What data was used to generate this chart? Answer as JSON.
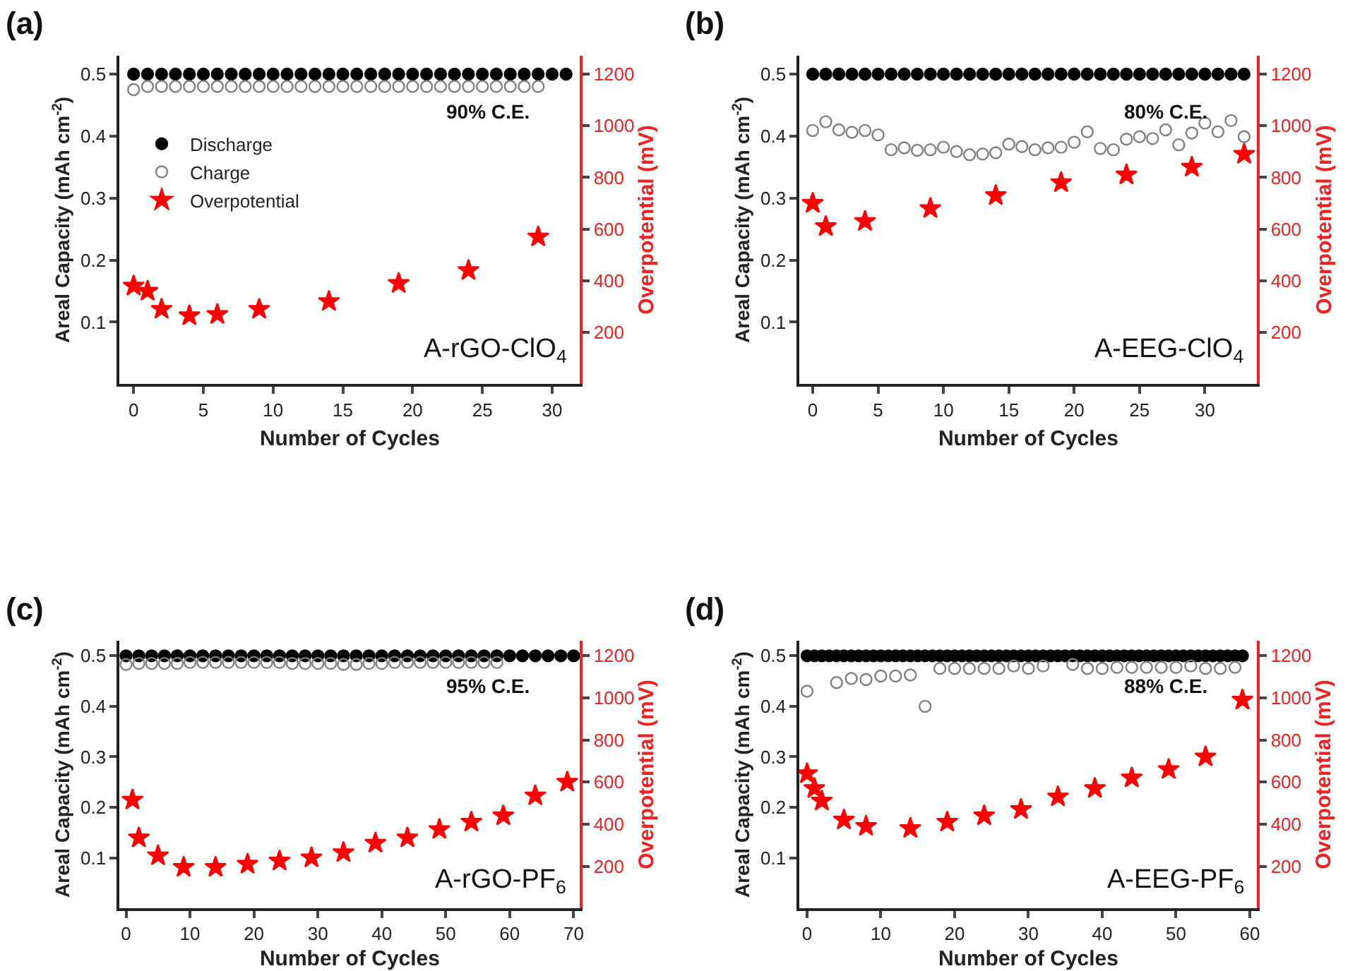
{
  "chart_data": [
    {
      "type": "scatter",
      "title": "(a)",
      "xlabel": "Number of Cycles",
      "ylabel": "Areal Capacity (mAh cm$^{-2}$)",
      "y2label": "Overpotential (mV)",
      "xlim": [
        -1,
        32
      ],
      "xticks": [
        0,
        5,
        10,
        15,
        20,
        25,
        30
      ],
      "ylim": [
        0,
        0.53
      ],
      "yticks": [
        0.1,
        0.2,
        0.3,
        0.4,
        0.5
      ],
      "y2lim": [
        0,
        1272
      ],
      "y2ticks": [
        200,
        400,
        600,
        800,
        1000,
        1200
      ],
      "legend": "left",
      "annotations": [
        "90% C.E.",
        "A-rGO-ClO$_{4}$"
      ],
      "series": [
        {
          "name": "Discharge",
          "color": "#000000",
          "marker": "circle",
          "x": [
            0,
            1,
            2,
            3,
            4,
            5,
            6,
            7,
            8,
            9,
            10,
            11,
            12,
            13,
            14,
            15,
            16,
            17,
            18,
            19,
            20,
            21,
            22,
            23,
            24,
            25,
            26,
            27,
            28,
            29,
            30,
            31
          ],
          "values": [
            0.5,
            0.5,
            0.5,
            0.5,
            0.5,
            0.5,
            0.5,
            0.5,
            0.5,
            0.5,
            0.5,
            0.5,
            0.5,
            0.5,
            0.5,
            0.5,
            0.5,
            0.5,
            0.5,
            0.5,
            0.5,
            0.5,
            0.5,
            0.5,
            0.5,
            0.5,
            0.5,
            0.5,
            0.5,
            0.5,
            0.5,
            0.5
          ]
        },
        {
          "name": "Charge",
          "color": "#808080",
          "marker": "circle-open",
          "x": [
            0,
            1,
            2,
            3,
            4,
            5,
            6,
            7,
            8,
            9,
            10,
            11,
            12,
            13,
            14,
            15,
            16,
            17,
            18,
            19,
            20,
            21,
            22,
            23,
            24,
            25,
            26,
            27,
            28,
            29
          ],
          "values": [
            0.475,
            0.48,
            0.48,
            0.48,
            0.48,
            0.48,
            0.48,
            0.48,
            0.48,
            0.48,
            0.48,
            0.48,
            0.48,
            0.48,
            0.48,
            0.48,
            0.48,
            0.48,
            0.48,
            0.48,
            0.48,
            0.48,
            0.48,
            0.48,
            0.48,
            0.48,
            0.48,
            0.48,
            0.48,
            0.48
          ]
        },
        {
          "name": "Overpotential",
          "color": "#ff0000",
          "marker": "star",
          "axis": "y2",
          "x": [
            0,
            1,
            2,
            4,
            6,
            9,
            14,
            19,
            24,
            29
          ],
          "values": [
            380,
            360,
            290,
            265,
            270,
            290,
            320,
            390,
            440,
            570
          ]
        }
      ]
    },
    {
      "type": "scatter",
      "title": "(b)",
      "xlabel": "Number of Cycles",
      "ylabel": "Areal Capacity (mAh cm$^{-2}$)",
      "y2label": "Overpotential (mV)",
      "xlim": [
        -1,
        34
      ],
      "xticks": [
        0,
        5,
        10,
        15,
        20,
        25,
        30
      ],
      "ylim": [
        0,
        0.53
      ],
      "yticks": [
        0.1,
        0.2,
        0.3,
        0.4,
        0.5
      ],
      "y2lim": [
        0,
        1272
      ],
      "y2ticks": [
        200,
        400,
        600,
        800,
        1000,
        1200
      ],
      "annotations": [
        "80% C.E.",
        "A-EEG-ClO$_{4}$"
      ],
      "series": [
        {
          "color": "#000000",
          "marker": "circle",
          "x": [
            0,
            1,
            2,
            3,
            4,
            5,
            6,
            7,
            8,
            9,
            10,
            11,
            12,
            13,
            14,
            15,
            16,
            17,
            18,
            19,
            20,
            21,
            22,
            23,
            24,
            25,
            26,
            27,
            28,
            29,
            30,
            31,
            32,
            33
          ],
          "values": [
            0.5,
            0.5,
            0.5,
            0.5,
            0.5,
            0.5,
            0.5,
            0.5,
            0.5,
            0.5,
            0.5,
            0.5,
            0.5,
            0.5,
            0.5,
            0.5,
            0.5,
            0.5,
            0.5,
            0.5,
            0.5,
            0.5,
            0.5,
            0.5,
            0.5,
            0.5,
            0.5,
            0.5,
            0.5,
            0.5,
            0.5,
            0.5,
            0.5,
            0.5
          ]
        },
        {
          "color": "#808080",
          "marker": "circle-open",
          "x": [
            0,
            1,
            2,
            3,
            4,
            5,
            6,
            7,
            8,
            9,
            10,
            11,
            12,
            13,
            14,
            15,
            16,
            17,
            18,
            19,
            20,
            21,
            22,
            23,
            24,
            25,
            26,
            27,
            28,
            29,
            30,
            31,
            32,
            33
          ],
          "values": [
            0.409,
            0.423,
            0.41,
            0.406,
            0.409,
            0.402,
            0.378,
            0.381,
            0.377,
            0.378,
            0.382,
            0.375,
            0.37,
            0.371,
            0.373,
            0.387,
            0.383,
            0.378,
            0.381,
            0.382,
            0.39,
            0.407,
            0.38,
            0.378,
            0.395,
            0.399,
            0.396,
            0.41,
            0.386,
            0.405,
            0.421,
            0.407,
            0.425,
            0.399
          ]
        },
        {
          "color": "#ff0000",
          "marker": "star",
          "axis": "y2",
          "x": [
            0,
            1,
            4,
            9,
            14,
            19,
            24,
            29,
            33
          ],
          "values": [
            700,
            610,
            630,
            680,
            730,
            780,
            810,
            840,
            890
          ]
        }
      ]
    },
    {
      "type": "scatter",
      "title": "(c)",
      "xlabel": "Number of Cycles",
      "ylabel": "Areal Capacity (mAh cm$^{-2}$)",
      "y2label": "Overpotential (mV)",
      "xlim": [
        -1,
        71
      ],
      "xticks": [
        0,
        10,
        20,
        30,
        40,
        50,
        60,
        70
      ],
      "ylim": [
        0,
        0.53
      ],
      "yticks": [
        0.1,
        0.2,
        0.3,
        0.4,
        0.5
      ],
      "y2lim": [
        0,
        1272
      ],
      "y2ticks": [
        200,
        400,
        600,
        800,
        1000,
        1200
      ],
      "annotations": [
        "95% C.E.",
        "A-rGO-PF$_{6}$"
      ],
      "series": [
        {
          "color": "#000000",
          "marker": "circle",
          "x": [
            0,
            2,
            4,
            6,
            8,
            10,
            12,
            14,
            16,
            18,
            20,
            22,
            24,
            26,
            28,
            30,
            32,
            34,
            36,
            38,
            40,
            42,
            44,
            46,
            48,
            50,
            52,
            54,
            56,
            58,
            60,
            62,
            64,
            66,
            68,
            70
          ],
          "values": [
            0.5,
            0.5,
            0.5,
            0.5,
            0.5,
            0.5,
            0.5,
            0.5,
            0.5,
            0.5,
            0.5,
            0.5,
            0.5,
            0.5,
            0.5,
            0.5,
            0.5,
            0.5,
            0.5,
            0.5,
            0.5,
            0.5,
            0.5,
            0.5,
            0.5,
            0.5,
            0.5,
            0.5,
            0.5,
            0.5,
            0.5,
            0.5,
            0.5,
            0.5,
            0.5,
            0.5
          ]
        },
        {
          "color": "#808080",
          "marker": "circle-open",
          "x": [
            0,
            2,
            4,
            6,
            8,
            10,
            12,
            14,
            16,
            18,
            20,
            22,
            24,
            26,
            28,
            30,
            32,
            34,
            36,
            38,
            40,
            42,
            44,
            46,
            48,
            50,
            52,
            54,
            56,
            58
          ],
          "values": [
            0.483,
            0.485,
            0.485,
            0.485,
            0.485,
            0.487,
            0.487,
            0.487,
            0.487,
            0.487,
            0.487,
            0.487,
            0.487,
            0.485,
            0.485,
            0.485,
            0.485,
            0.483,
            0.483,
            0.485,
            0.485,
            0.487,
            0.487,
            0.487,
            0.487,
            0.487,
            0.487,
            0.487,
            0.487,
            0.487
          ]
        },
        {
          "color": "#ff0000",
          "marker": "star",
          "axis": "y2",
          "x": [
            1,
            2,
            5,
            9,
            14,
            19,
            24,
            29,
            34,
            39,
            44,
            49,
            54,
            59,
            64,
            69
          ],
          "values": [
            515,
            335,
            250,
            195,
            195,
            210,
            225,
            240,
            265,
            310,
            335,
            375,
            410,
            440,
            535,
            600
          ]
        }
      ]
    },
    {
      "type": "scatter",
      "title": "(d)",
      "xlabel": "Number of Cycles",
      "ylabel": "Areal Capacity (mAh cm$^{-2}$)",
      "y2label": "Overpotential (mV)",
      "xlim": [
        -1,
        61
      ],
      "xticks": [
        0,
        10,
        20,
        30,
        40,
        50,
        60
      ],
      "ylim": [
        0,
        0.53
      ],
      "yticks": [
        0.1,
        0.2,
        0.3,
        0.4,
        0.5
      ],
      "y2lim": [
        0,
        1272
      ],
      "y2ticks": [
        200,
        400,
        600,
        800,
        1000,
        1200
      ],
      "annotations": [
        "88% C.E.",
        "A-EEG-PF$_{6}$"
      ],
      "series": [
        {
          "color": "#000000",
          "marker": "circle",
          "x": [
            0,
            1,
            2,
            3,
            4,
            5,
            6,
            7,
            8,
            9,
            10,
            11,
            12,
            13,
            14,
            15,
            16,
            17,
            18,
            19,
            20,
            21,
            22,
            23,
            24,
            25,
            26,
            27,
            28,
            29,
            30,
            31,
            32,
            33,
            34,
            35,
            36,
            37,
            38,
            39,
            40,
            41,
            42,
            43,
            44,
            45,
            46,
            47,
            48,
            49,
            50,
            51,
            52,
            53,
            54,
            55,
            56,
            57,
            58,
            59
          ],
          "values": [
            0.5,
            0.5,
            0.5,
            0.5,
            0.5,
            0.5,
            0.5,
            0.5,
            0.5,
            0.5,
            0.5,
            0.5,
            0.5,
            0.5,
            0.5,
            0.5,
            0.5,
            0.5,
            0.5,
            0.5,
            0.5,
            0.5,
            0.5,
            0.5,
            0.5,
            0.5,
            0.5,
            0.5,
            0.5,
            0.5,
            0.5,
            0.5,
            0.5,
            0.5,
            0.5,
            0.5,
            0.5,
            0.5,
            0.5,
            0.5,
            0.5,
            0.5,
            0.5,
            0.5,
            0.5,
            0.5,
            0.5,
            0.5,
            0.5,
            0.5,
            0.5,
            0.5,
            0.5,
            0.5,
            0.5,
            0.5,
            0.5,
            0.5,
            0.5,
            0.5
          ]
        },
        {
          "color": "#808080",
          "marker": "circle-open",
          "x": [
            0,
            4,
            6,
            8,
            10,
            12,
            14,
            16,
            18,
            20,
            22,
            24,
            26,
            28,
            30,
            32,
            36,
            38,
            40,
            42,
            44,
            46,
            48,
            50,
            52,
            54,
            56,
            58
          ],
          "values": [
            0.43,
            0.447,
            0.455,
            0.453,
            0.46,
            0.46,
            0.462,
            0.4,
            0.475,
            0.475,
            0.475,
            0.475,
            0.475,
            0.48,
            0.475,
            0.48,
            0.483,
            0.475,
            0.475,
            0.477,
            0.477,
            0.477,
            0.477,
            0.477,
            0.48,
            0.475,
            0.475,
            0.477
          ]
        },
        {
          "color": "#ff0000",
          "marker": "star",
          "axis": "y2",
          "x": [
            0,
            1,
            2,
            5,
            8,
            14,
            19,
            24,
            29,
            34,
            39,
            44,
            49,
            54,
            59
          ],
          "values": [
            640,
            570,
            510,
            420,
            390,
            380,
            410,
            440,
            470,
            530,
            570,
            620,
            660,
            720,
            990
          ]
        }
      ]
    }
  ]
}
